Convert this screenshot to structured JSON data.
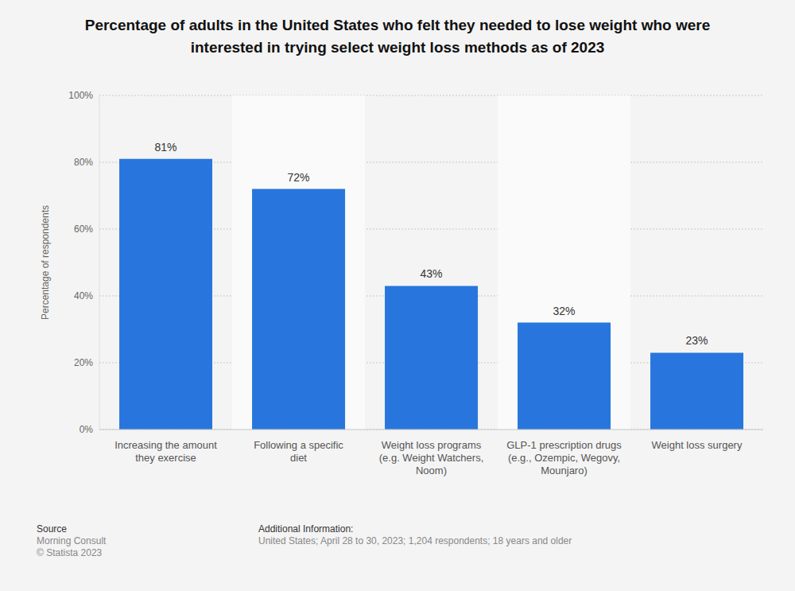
{
  "chart_data": {
    "type": "bar",
    "title": "Percentage of adults in the United States who felt they needed to lose weight who were interested in trying select weight loss methods as of 2023",
    "y_label": "Percentage of respondents",
    "categories": [
      "Increasing the amount they exercise",
      "Following a specific diet",
      "Weight loss programs (e.g. Weight Watchers, Noom)",
      "GLP-1 prescription drugs (e.g., Ozempic, Wegovy, Mounjaro)",
      "Weight loss surgery"
    ],
    "values": [
      81,
      72,
      43,
      32,
      23
    ],
    "value_labels": [
      "81%",
      "72%",
      "43%",
      "32%",
      "23%"
    ],
    "color": "#2876dd",
    "ylim": [
      0,
      100
    ],
    "yticks": [
      {
        "value": 0,
        "label": "0%"
      },
      {
        "value": 20,
        "label": "20%"
      },
      {
        "value": 40,
        "label": "40%"
      },
      {
        "value": 60,
        "label": "60%"
      },
      {
        "value": 80,
        "label": "80%"
      },
      {
        "value": 100,
        "label": "100%"
      }
    ],
    "grid": true,
    "data_labels": true,
    "source_heading": "Source",
    "source": [
      "Morning Consult",
      "© Statista 2023"
    ],
    "additional_info_heading": "Additional Information:",
    "additional_info": "United States; April 28 to 30, 2023; 1,204 respondents; 18 years and older"
  }
}
